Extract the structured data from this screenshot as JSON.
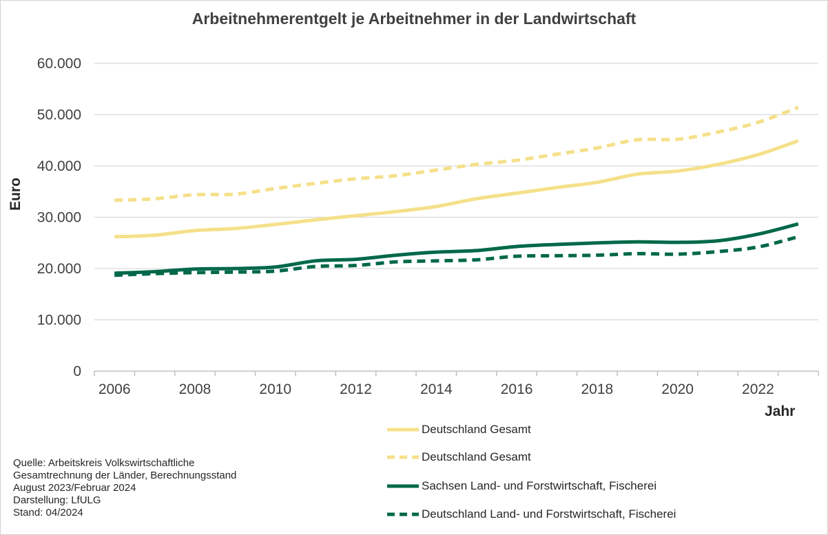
{
  "chart_data": {
    "type": "line",
    "title": "Arbeitnehmerentgelt je Arbeitnehmer in der Landwirtschaft",
    "xlabel": "Jahr",
    "ylabel": "Euro",
    "x": [
      2006,
      2007,
      2008,
      2009,
      2010,
      2011,
      2012,
      2013,
      2014,
      2015,
      2016,
      2017,
      2018,
      2019,
      2020,
      2021,
      2022,
      2023
    ],
    "xticks": [
      "2006",
      "2008",
      "2010",
      "2012",
      "2014",
      "2016",
      "2018",
      "2020",
      "2022"
    ],
    "yticks": [
      "0",
      "10.000",
      "20.000",
      "30.000",
      "40.000",
      "50.000",
      "60.000"
    ],
    "ylim": [
      0,
      60000
    ],
    "grid": "horizontal",
    "legend_position": "bottom-right",
    "series": [
      {
        "name": "Deutschland Gesamt",
        "style": "solid",
        "color": "#f5e08a",
        "values": [
          26200,
          26500,
          27400,
          27800,
          28600,
          29500,
          30300,
          31100,
          32100,
          33600,
          34700,
          35800,
          36800,
          38400,
          39000,
          40300,
          42200,
          44900
        ]
      },
      {
        "name": "Deutschland Gesamt",
        "style": "dashed",
        "color": "#f5e08a",
        "values": [
          33300,
          33600,
          34400,
          34500,
          35600,
          36600,
          37500,
          38100,
          39200,
          40300,
          41100,
          42300,
          43500,
          45100,
          45200,
          46600,
          48500,
          51400
        ]
      },
      {
        "name": "Sachsen Land- und Forstwirtschaft, Fischerei",
        "style": "solid",
        "color": "#00684a",
        "values": [
          19100,
          19400,
          19900,
          20000,
          20300,
          21500,
          21800,
          22600,
          23200,
          23500,
          24300,
          24700,
          25000,
          25200,
          25100,
          25400,
          26700,
          28700
        ]
      },
      {
        "name": "Deutschland Land- und Forstwirtschaft, Fischerei",
        "style": "dashed",
        "color": "#00684a",
        "values": [
          18700,
          19000,
          19200,
          19300,
          19500,
          20400,
          20600,
          21300,
          21500,
          21700,
          22400,
          22500,
          22600,
          22900,
          22800,
          23300,
          24200,
          26200
        ]
      }
    ]
  },
  "source_note": {
    "lines": [
      "Quelle:  Arbeitskreis  Volkswirtschaftliche",
      "Gesamtrechnung  der Länder,  Berechnungsstand",
      "August  2023/Februar  2024",
      "Darstellung:  LfULG",
      "Stand:  04/2024"
    ]
  }
}
